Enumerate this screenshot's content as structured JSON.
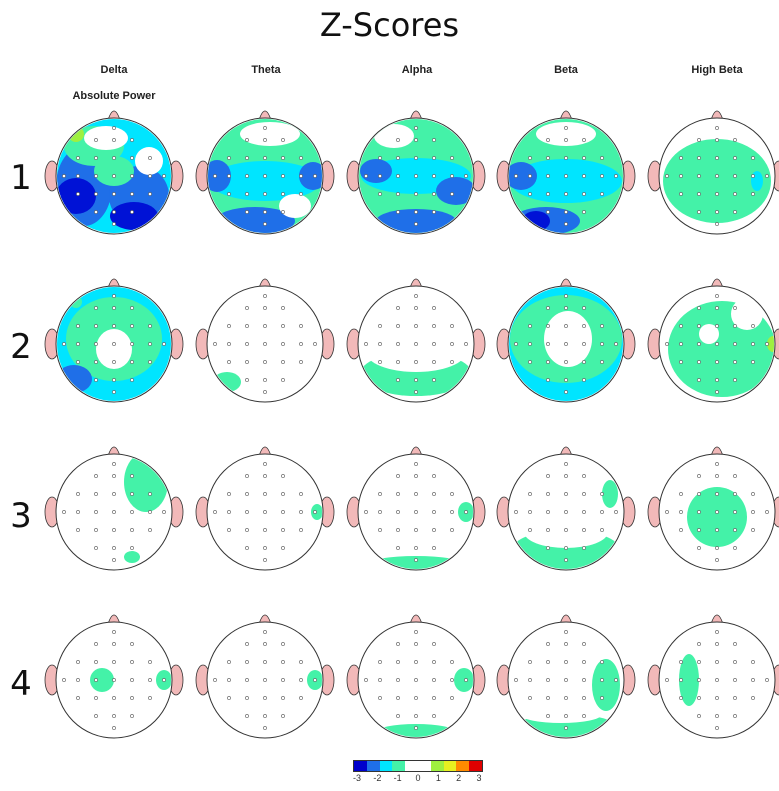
{
  "title": "Z-Scores",
  "measure_label": "Absolute Power",
  "bands": [
    "Delta",
    "Theta",
    "Alpha",
    "Beta",
    "High Beta"
  ],
  "rows": [
    "1",
    "2",
    "3",
    "4"
  ],
  "color_scale": {
    "ticks": [
      "-3",
      "-2",
      "-1",
      "0",
      "1",
      "2",
      "3"
    ],
    "colors": [
      "#0000cc",
      "#1f6fe8",
      "#00e5ff",
      "#44f2a8",
      "#ffffff",
      "#ffffff",
      "#9ff040",
      "#e8f020",
      "#ff8a00",
      "#e00000"
    ]
  },
  "colors": {
    "strong_negative": "#0012d6",
    "medium_negative": "#1f6fe8",
    "mild_negative": "#00e5ff",
    "near_normal": "#44f2a8",
    "mild_positive": "#9ff040",
    "ear_nose": "#f2b9b9",
    "outline": "#333333"
  }
}
